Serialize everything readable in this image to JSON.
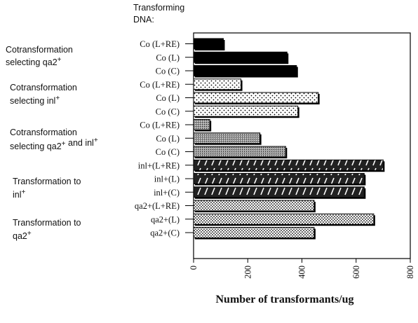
{
  "chart_data": {
    "type": "bar",
    "orientation": "horizontal",
    "header": [
      "Transforming",
      "DNA:"
    ],
    "xlabel": "Number of transformants/ug",
    "xlim": [
      0,
      800
    ],
    "xticks": [
      "0",
      "200",
      "400",
      "600",
      "800"
    ],
    "grid": false,
    "groups": [
      {
        "label": [
          "Cotransformation",
          "selecting qa2+"
        ],
        "bars": [
          {
            "category": "Co (L+RE)",
            "value": 110,
            "fill": "solid"
          },
          {
            "category": "Co (L)",
            "value": 345,
            "fill": "solid"
          },
          {
            "category": "Co (C)",
            "value": 380,
            "fill": "solid"
          }
        ]
      },
      {
        "label": [
          "Cotransformation",
          "selecting inl+"
        ],
        "bars": [
          {
            "category": "Co (L+RE)",
            "value": 175,
            "fill": "sparse-dots"
          },
          {
            "category": "Co (L)",
            "value": 460,
            "fill": "sparse-dots"
          },
          {
            "category": "Co (C)",
            "value": 385,
            "fill": "sparse-dots"
          }
        ]
      },
      {
        "label": [
          "Cotransformation",
          "selecting qa2+ and inl+"
        ],
        "bars": [
          {
            "category": "Co (L+RE)",
            "value": 60,
            "fill": "gray-stipple"
          },
          {
            "category": "Co (L)",
            "value": 245,
            "fill": "gray-stipple"
          },
          {
            "category": "Co (C)",
            "value": 340,
            "fill": "gray-stipple"
          }
        ]
      },
      {
        "label": [
          "Transformation to",
          "inl+"
        ],
        "bars": [
          {
            "category": "inl+(L+RE)",
            "value": 700,
            "fill": "diagonal-stripes"
          },
          {
            "category": "inl+(L)",
            "value": 630,
            "fill": "diagonal-stripes"
          },
          {
            "category": "inl+(C)",
            "value": 630,
            "fill": "diagonal-stripes"
          }
        ]
      },
      {
        "label": [
          "Transformation to",
          "qa2+"
        ],
        "bars": [
          {
            "category": "qa2+(L+RE)",
            "value": 445,
            "fill": "dense-dots"
          },
          {
            "category": "qa2+(L)",
            "value": 665,
            "fill": "dense-dots"
          },
          {
            "category": "qa2+(C)",
            "value": 445,
            "fill": "dense-dots"
          }
        ]
      }
    ]
  }
}
